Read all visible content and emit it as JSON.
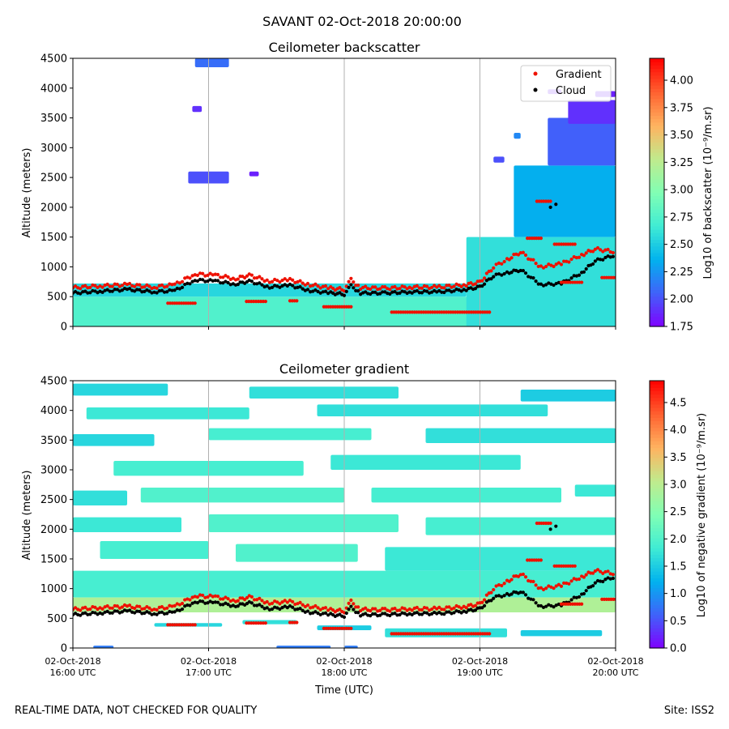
{
  "figure": {
    "suptitle": "SAVANT 02-Oct-2018 20:00:00",
    "footer_left": "REAL-TIME DATA, NOT CHECKED FOR QUALITY",
    "footer_right": "Site: ISS2"
  },
  "colors": {
    "gradient_marker": "#ee1100",
    "cloud_marker": "#000000",
    "gridline": "#b0b0b0",
    "rainbow": [
      "#8000ff",
      "#4062fa",
      "#01b2ee",
      "#40ecd4",
      "#81ffb4",
      "#c0eb8d",
      "#ffb360",
      "#ff6130",
      "#ff0000"
    ]
  },
  "chart_data": [
    {
      "type": "heatmap",
      "title": "Ceilometer backscatter",
      "xlabel": "",
      "ylabel": "Altitude (meters)",
      "ylim": [
        0,
        4500
      ],
      "yticks": [
        0,
        500,
        1000,
        1500,
        2000,
        2500,
        3000,
        3500,
        4000,
        4500
      ],
      "xlim": [
        16,
        20
      ],
      "xticks": [
        16,
        17,
        18,
        19,
        20
      ],
      "xtick_labels": [],
      "vertical_grid_at": [
        17,
        18,
        19
      ],
      "colorbar": {
        "label": "Log10 of backscatter (10⁻⁹/m.sr)",
        "min": 1.75,
        "max": 4.2,
        "ticks": [
          "1.75",
          "2.00",
          "2.25",
          "2.50",
          "2.75",
          "3.00",
          "3.25",
          "3.50",
          "3.75",
          "4.00"
        ]
      },
      "legend": {
        "position": "top-right",
        "entries": [
          "Gradient",
          "Cloud"
        ]
      },
      "regions": [
        {
          "x": [
            16.0,
            20.0
          ],
          "y": [
            0,
            500
          ],
          "value": 2.75
        },
        {
          "x": [
            16.0,
            18.9
          ],
          "y": [
            500,
            720
          ],
          "value": 2.55
        },
        {
          "x": [
            18.9,
            20.0
          ],
          "y": [
            0,
            1500
          ],
          "value": 2.6
        },
        {
          "x": [
            19.25,
            20.0
          ],
          "y": [
            1500,
            2700
          ],
          "value": 2.35
        },
        {
          "x": [
            19.5,
            20.0
          ],
          "y": [
            2700,
            3500
          ],
          "value": 2.05
        },
        {
          "x": [
            19.65,
            20.0
          ],
          "y": [
            3400,
            3800
          ],
          "value": 1.9
        },
        {
          "x": [
            16.85,
            17.15
          ],
          "y": [
            2400,
            2600
          ],
          "value": 2.0
        },
        {
          "x": [
            16.9,
            17.15
          ],
          "y": [
            4350,
            4500
          ],
          "value": 2.1
        },
        {
          "x": [
            16.88,
            16.95
          ],
          "y": [
            3600,
            3700
          ],
          "value": 1.9
        },
        {
          "x": [
            17.3,
            17.37
          ],
          "y": [
            2520,
            2600
          ],
          "value": 1.85
        },
        {
          "x": [
            19.1,
            19.18
          ],
          "y": [
            2750,
            2850
          ],
          "value": 2.0
        },
        {
          "x": [
            19.25,
            19.3
          ],
          "y": [
            3150,
            3250
          ],
          "value": 2.2
        },
        {
          "x": [
            19.5,
            19.6
          ],
          "y": [
            3900,
            3980
          ],
          "value": 1.85
        },
        {
          "x": [
            19.85,
            20.0
          ],
          "y": [
            3850,
            3950
          ],
          "value": 1.85
        }
      ],
      "gradient_series": [
        [
          16.0,
          650
        ],
        [
          16.2,
          680
        ],
        [
          16.4,
          700
        ],
        [
          16.6,
          660
        ],
        [
          16.75,
          700
        ],
        [
          16.9,
          880
        ],
        [
          17.05,
          860
        ],
        [
          17.2,
          800
        ],
        [
          17.3,
          860
        ],
        [
          17.45,
          760
        ],
        [
          17.6,
          780
        ],
        [
          17.75,
          700
        ],
        [
          17.9,
          640
        ],
        [
          18.0,
          620
        ],
        [
          18.05,
          780
        ],
        [
          18.12,
          650
        ],
        [
          18.3,
          640
        ],
        [
          18.5,
          660
        ],
        [
          18.7,
          660
        ],
        [
          18.9,
          700
        ],
        [
          19.0,
          740
        ],
        [
          19.1,
          1000
        ],
        [
          19.2,
          1120
        ],
        [
          19.3,
          1250
        ],
        [
          19.45,
          1000
        ],
        [
          19.6,
          1050
        ],
        [
          19.75,
          1200
        ],
        [
          19.85,
          1300
        ],
        [
          20.0,
          1250
        ]
      ],
      "cloud_series": [
        [
          16.0,
          560
        ],
        [
          16.2,
          590
        ],
        [
          16.4,
          620
        ],
        [
          16.6,
          580
        ],
        [
          16.75,
          600
        ],
        [
          16.9,
          780
        ],
        [
          17.05,
          760
        ],
        [
          17.2,
          710
        ],
        [
          17.3,
          760
        ],
        [
          17.45,
          660
        ],
        [
          17.6,
          690
        ],
        [
          17.75,
          600
        ],
        [
          17.9,
          560
        ],
        [
          18.0,
          540
        ],
        [
          18.05,
          680
        ],
        [
          18.12,
          560
        ],
        [
          18.3,
          560
        ],
        [
          18.5,
          580
        ],
        [
          18.7,
          580
        ],
        [
          18.9,
          620
        ],
        [
          19.0,
          660
        ],
        [
          19.1,
          850
        ],
        [
          19.2,
          900
        ],
        [
          19.3,
          950
        ],
        [
          19.45,
          700
        ],
        [
          19.6,
          720
        ],
        [
          19.75,
          900
        ],
        [
          19.85,
          1100
        ],
        [
          20.0,
          1200
        ]
      ],
      "gradient_segments": [
        {
          "x": [
            16.7,
            16.9
          ],
          "y": 390
        },
        {
          "x": [
            17.28,
            17.42
          ],
          "y": 420
        },
        {
          "x": [
            17.6,
            17.65
          ],
          "y": 430
        },
        {
          "x": [
            17.85,
            18.05
          ],
          "y": 330
        },
        {
          "x": [
            18.35,
            19.07
          ],
          "y": 240
        },
        {
          "x": [
            19.42,
            19.52
          ],
          "y": 2100
        },
        {
          "x": [
            19.35,
            19.45
          ],
          "y": 1480
        },
        {
          "x": [
            19.55,
            19.7
          ],
          "y": 1380
        },
        {
          "x": [
            19.6,
            19.75
          ],
          "y": 740
        },
        {
          "x": [
            19.9,
            20.0
          ],
          "y": 820
        }
      ],
      "cloud_points": [
        [
          19.52,
          2000
        ],
        [
          19.56,
          2050
        ]
      ]
    },
    {
      "type": "heatmap",
      "title": "Ceilometer gradient",
      "xlabel": "Time (UTC)",
      "ylabel": "Altitude (meters)",
      "ylim": [
        0,
        4500
      ],
      "yticks": [
        0,
        500,
        1000,
        1500,
        2000,
        2500,
        3000,
        3500,
        4000,
        4500
      ],
      "xlim": [
        16,
        20
      ],
      "xticks": [
        16,
        17,
        18,
        19,
        20
      ],
      "xtick_labels": [
        [
          "02-Oct-2018",
          "16:00 UTC"
        ],
        [
          "02-Oct-2018",
          "17:00 UTC"
        ],
        [
          "02-Oct-2018",
          "18:00 UTC"
        ],
        [
          "02-Oct-2018",
          "19:00 UTC"
        ],
        [
          "02-Oct-2018",
          "20:00 UTC"
        ]
      ],
      "vertical_grid_at": [
        17,
        18,
        19
      ],
      "colorbar": {
        "label": "Log10 of negative gradient (10⁻⁹/m.sr)",
        "min": 0,
        "max": 4.9,
        "ticks": [
          "0.0",
          "0.5",
          "1.0",
          "1.5",
          "2.0",
          "2.5",
          "3.0",
          "3.5",
          "4.0",
          "4.5"
        ]
      },
      "bands": [
        {
          "x": [
            16.0,
            16.7
          ],
          "y": [
            4250,
            4450
          ],
          "value": 1.6
        },
        {
          "x": [
            17.3,
            18.4
          ],
          "y": [
            4200,
            4400
          ],
          "value": 1.7
        },
        {
          "x": [
            19.3,
            20.0
          ],
          "y": [
            4150,
            4350
          ],
          "value": 1.5
        },
        {
          "x": [
            16.1,
            17.3
          ],
          "y": [
            3850,
            4050
          ],
          "value": 1.8
        },
        {
          "x": [
            17.8,
            19.5
          ],
          "y": [
            3900,
            4100
          ],
          "value": 1.7
        },
        {
          "x": [
            16.0,
            16.6
          ],
          "y": [
            3400,
            3600
          ],
          "value": 1.6
        },
        {
          "x": [
            17.0,
            18.2
          ],
          "y": [
            3500,
            3700
          ],
          "value": 1.9
        },
        {
          "x": [
            18.6,
            20.0
          ],
          "y": [
            3450,
            3700
          ],
          "value": 1.7
        },
        {
          "x": [
            16.3,
            17.7
          ],
          "y": [
            2900,
            3150
          ],
          "value": 1.9
        },
        {
          "x": [
            17.9,
            19.3
          ],
          "y": [
            3000,
            3250
          ],
          "value": 1.8
        },
        {
          "x": [
            16.0,
            16.4
          ],
          "y": [
            2400,
            2650
          ],
          "value": 1.7
        },
        {
          "x": [
            16.5,
            18.0
          ],
          "y": [
            2450,
            2700
          ],
          "value": 2.0
        },
        {
          "x": [
            18.2,
            19.6
          ],
          "y": [
            2450,
            2700
          ],
          "value": 1.9
        },
        {
          "x": [
            19.7,
            20.0
          ],
          "y": [
            2550,
            2750
          ],
          "value": 1.8
        },
        {
          "x": [
            16.0,
            16.8
          ],
          "y": [
            1950,
            2200
          ],
          "value": 1.8
        },
        {
          "x": [
            17.0,
            18.4
          ],
          "y": [
            1950,
            2250
          ],
          "value": 2.0
        },
        {
          "x": [
            18.6,
            20.0
          ],
          "y": [
            1900,
            2200
          ],
          "value": 1.9
        },
        {
          "x": [
            16.2,
            17.0
          ],
          "y": [
            1500,
            1800
          ],
          "value": 1.9
        },
        {
          "x": [
            17.2,
            18.1
          ],
          "y": [
            1450,
            1750
          ],
          "value": 2.0
        },
        {
          "x": [
            18.3,
            20.0
          ],
          "y": [
            1300,
            1700
          ],
          "value": 1.8
        },
        {
          "x": [
            16.0,
            20.0
          ],
          "y": [
            850,
            1300
          ],
          "value": 1.9
        },
        {
          "x": [
            16.0,
            20.0
          ],
          "y": [
            600,
            850
          ],
          "value": 2.9
        },
        {
          "x": [
            16.6,
            17.1
          ],
          "y": [
            360,
            420
          ],
          "value": 1.6
        },
        {
          "x": [
            17.25,
            17.65
          ],
          "y": [
            400,
            470
          ],
          "value": 1.7
        },
        {
          "x": [
            17.8,
            18.2
          ],
          "y": [
            300,
            380
          ],
          "value": 1.5
        },
        {
          "x": [
            18.3,
            19.2
          ],
          "y": [
            180,
            330
          ],
          "value": 1.7
        },
        {
          "x": [
            19.3,
            19.9
          ],
          "y": [
            200,
            300
          ],
          "value": 1.5
        },
        {
          "x": [
            16.15,
            16.3
          ],
          "y": [
            0,
            40
          ],
          "value": 0.8
        },
        {
          "x": [
            17.5,
            17.9
          ],
          "y": [
            0,
            40
          ],
          "value": 0.8
        },
        {
          "x": [
            18.0,
            18.1
          ],
          "y": [
            0,
            40
          ],
          "value": 0.8
        }
      ],
      "gradient_series": [
        [
          16.0,
          650
        ],
        [
          16.2,
          680
        ],
        [
          16.4,
          700
        ],
        [
          16.6,
          660
        ],
        [
          16.75,
          700
        ],
        [
          16.9,
          880
        ],
        [
          17.05,
          860
        ],
        [
          17.2,
          800
        ],
        [
          17.3,
          860
        ],
        [
          17.45,
          760
        ],
        [
          17.6,
          780
        ],
        [
          17.75,
          700
        ],
        [
          17.9,
          640
        ],
        [
          18.0,
          620
        ],
        [
          18.05,
          780
        ],
        [
          18.12,
          650
        ],
        [
          18.3,
          640
        ],
        [
          18.5,
          660
        ],
        [
          18.7,
          660
        ],
        [
          18.9,
          700
        ],
        [
          19.0,
          740
        ],
        [
          19.1,
          1000
        ],
        [
          19.2,
          1120
        ],
        [
          19.3,
          1250
        ],
        [
          19.45,
          1000
        ],
        [
          19.6,
          1050
        ],
        [
          19.75,
          1200
        ],
        [
          19.85,
          1300
        ],
        [
          20.0,
          1250
        ]
      ],
      "cloud_series": [
        [
          16.0,
          560
        ],
        [
          16.2,
          590
        ],
        [
          16.4,
          620
        ],
        [
          16.6,
          580
        ],
        [
          16.75,
          600
        ],
        [
          16.9,
          780
        ],
        [
          17.05,
          760
        ],
        [
          17.2,
          710
        ],
        [
          17.3,
          760
        ],
        [
          17.45,
          660
        ],
        [
          17.6,
          690
        ],
        [
          17.75,
          600
        ],
        [
          17.9,
          560
        ],
        [
          18.0,
          540
        ],
        [
          18.05,
          680
        ],
        [
          18.12,
          560
        ],
        [
          18.3,
          560
        ],
        [
          18.5,
          580
        ],
        [
          18.7,
          580
        ],
        [
          18.9,
          620
        ],
        [
          19.0,
          660
        ],
        [
          19.1,
          850
        ],
        [
          19.2,
          900
        ],
        [
          19.3,
          950
        ],
        [
          19.45,
          700
        ],
        [
          19.6,
          720
        ],
        [
          19.75,
          900
        ],
        [
          19.85,
          1100
        ],
        [
          20.0,
          1200
        ]
      ],
      "gradient_segments": [
        {
          "x": [
            16.7,
            16.9
          ],
          "y": 390
        },
        {
          "x": [
            17.28,
            17.42
          ],
          "y": 420
        },
        {
          "x": [
            17.6,
            17.65
          ],
          "y": 430
        },
        {
          "x": [
            17.85,
            18.05
          ],
          "y": 330
        },
        {
          "x": [
            18.35,
            19.07
          ],
          "y": 240
        },
        {
          "x": [
            19.42,
            19.52
          ],
          "y": 2100
        },
        {
          "x": [
            19.35,
            19.45
          ],
          "y": 1480
        },
        {
          "x": [
            19.55,
            19.7
          ],
          "y": 1380
        },
        {
          "x": [
            19.6,
            19.75
          ],
          "y": 740
        },
        {
          "x": [
            19.9,
            20.0
          ],
          "y": 820
        }
      ],
      "cloud_points": [
        [
          19.52,
          2000
        ],
        [
          19.56,
          2050
        ]
      ]
    }
  ]
}
